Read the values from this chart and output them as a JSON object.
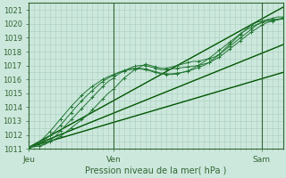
{
  "xlabel": "Pression niveau de la mer( hPa )",
  "bg_color": "#cce8dd",
  "grid_color": "#aaccbb",
  "line_color_dark": "#005500",
  "line_color_marker": "#227733",
  "ylim": [
    1011.0,
    1021.5
  ],
  "xlim": [
    0,
    48
  ],
  "xtick_positions": [
    0,
    16,
    44
  ],
  "xtick_labels": [
    "Jeu",
    "Ven",
    "Sam"
  ],
  "ytick_positions": [
    1011,
    1012,
    1013,
    1014,
    1015,
    1016,
    1017,
    1018,
    1019,
    1020,
    1021
  ],
  "vline_positions": [
    16,
    44
  ],
  "straight_line1_x": [
    0,
    48
  ],
  "straight_line1_y": [
    1011.1,
    1021.2
  ],
  "straight_line2_x": [
    0,
    48
  ],
  "straight_line2_y": [
    1011.1,
    1016.5
  ],
  "straight_line3_x": [
    0,
    48
  ],
  "straight_line3_y": [
    1011.1,
    1018.5
  ],
  "marker_line1_x": [
    0,
    1,
    2,
    3,
    4,
    5,
    6,
    7,
    8,
    9,
    10,
    11,
    12,
    13,
    14,
    15,
    16,
    17,
    18,
    19,
    20,
    21,
    22,
    23,
    24,
    25,
    26,
    27,
    28,
    29,
    30,
    31,
    32,
    33,
    34,
    35,
    36,
    37,
    38,
    39,
    40,
    41,
    42,
    43,
    44,
    45,
    46,
    47,
    48
  ],
  "marker_line1_y": [
    1011.1,
    1011.15,
    1011.2,
    1011.3,
    1011.5,
    1011.7,
    1011.9,
    1012.2,
    1012.5,
    1012.8,
    1013.1,
    1013.4,
    1013.8,
    1014.2,
    1014.6,
    1015.0,
    1015.3,
    1015.7,
    1016.1,
    1016.4,
    1016.7,
    1016.9,
    1017.1,
    1017.0,
    1016.9,
    1016.8,
    1016.8,
    1016.9,
    1017.0,
    1017.1,
    1017.2,
    1017.3,
    1017.3,
    1017.4,
    1017.5,
    1017.6,
    1017.8,
    1018.1,
    1018.4,
    1018.7,
    1019.0,
    1019.3,
    1019.6,
    1019.9,
    1020.1,
    1020.3,
    1020.4,
    1020.5,
    1020.5
  ],
  "marker_line2_x": [
    0,
    1,
    2,
    3,
    4,
    5,
    6,
    7,
    8,
    9,
    10,
    11,
    12,
    13,
    14,
    15,
    16,
    17,
    18,
    19,
    20,
    21,
    22,
    23,
    24,
    25,
    26,
    27,
    28,
    29,
    30,
    31,
    32,
    33,
    34,
    35,
    36,
    37,
    38,
    39,
    40,
    41,
    42,
    43,
    44,
    45,
    46,
    47,
    48
  ],
  "marker_line2_y": [
    1011.1,
    1011.15,
    1011.2,
    1011.35,
    1011.6,
    1011.9,
    1012.3,
    1012.7,
    1013.1,
    1013.5,
    1013.9,
    1014.3,
    1014.7,
    1015.1,
    1015.5,
    1015.85,
    1016.1,
    1016.4,
    1016.6,
    1016.8,
    1016.95,
    1017.0,
    1017.0,
    1016.9,
    1016.8,
    1016.7,
    1016.7,
    1016.75,
    1016.8,
    1016.85,
    1016.9,
    1016.95,
    1017.0,
    1017.1,
    1017.2,
    1017.4,
    1017.6,
    1017.9,
    1018.2,
    1018.5,
    1018.8,
    1019.1,
    1019.4,
    1019.65,
    1019.9,
    1020.1,
    1020.2,
    1020.3,
    1020.4
  ],
  "marker_line3_x": [
    0,
    1,
    2,
    3,
    4,
    5,
    6,
    7,
    8,
    9,
    10,
    11,
    12,
    13,
    14,
    15,
    16,
    17,
    18,
    19,
    20,
    21,
    22,
    23,
    24,
    25,
    26,
    27,
    28,
    29,
    30,
    31,
    32,
    33,
    34,
    35,
    36,
    37,
    38,
    39,
    40,
    41,
    42,
    43,
    44,
    45,
    46,
    47,
    48
  ],
  "marker_line3_y": [
    1011.1,
    1011.2,
    1011.4,
    1011.65,
    1011.95,
    1012.3,
    1012.7,
    1013.15,
    1013.6,
    1014.05,
    1014.45,
    1014.85,
    1015.2,
    1015.55,
    1015.85,
    1016.1,
    1016.3,
    1016.5,
    1016.65,
    1016.75,
    1016.8,
    1016.8,
    1016.75,
    1016.65,
    1016.55,
    1016.45,
    1016.4,
    1016.4,
    1016.45,
    1016.5,
    1016.6,
    1016.7,
    1016.85,
    1017.0,
    1017.2,
    1017.5,
    1017.8,
    1018.2,
    1018.55,
    1018.9,
    1019.25,
    1019.6,
    1019.9,
    1020.1,
    1020.2,
    1020.3,
    1020.3,
    1020.35,
    1020.4
  ],
  "marker_line4_x": [
    0,
    1,
    2,
    3,
    4,
    5,
    6,
    7,
    8,
    9,
    10,
    11,
    12,
    13,
    14,
    15,
    16,
    17,
    18,
    19,
    20,
    21,
    22,
    23,
    24,
    25,
    26,
    27,
    28,
    29,
    30,
    31,
    32,
    33,
    34,
    35,
    36,
    37,
    38,
    39,
    40,
    41,
    42,
    43,
    44,
    45,
    46,
    47,
    48
  ],
  "marker_line4_y": [
    1011.1,
    1011.25,
    1011.5,
    1011.85,
    1012.25,
    1012.7,
    1013.15,
    1013.6,
    1014.05,
    1014.45,
    1014.85,
    1015.2,
    1015.5,
    1015.75,
    1016.0,
    1016.2,
    1016.35,
    1016.5,
    1016.6,
    1016.7,
    1016.75,
    1016.75,
    1016.7,
    1016.6,
    1016.5,
    1016.4,
    1016.35,
    1016.35,
    1016.4,
    1016.5,
    1016.6,
    1016.8,
    1017.0,
    1017.25,
    1017.5,
    1017.8,
    1018.1,
    1018.4,
    1018.7,
    1019.0,
    1019.3,
    1019.55,
    1019.75,
    1019.95,
    1020.1,
    1020.2,
    1020.25,
    1020.3,
    1020.35
  ]
}
